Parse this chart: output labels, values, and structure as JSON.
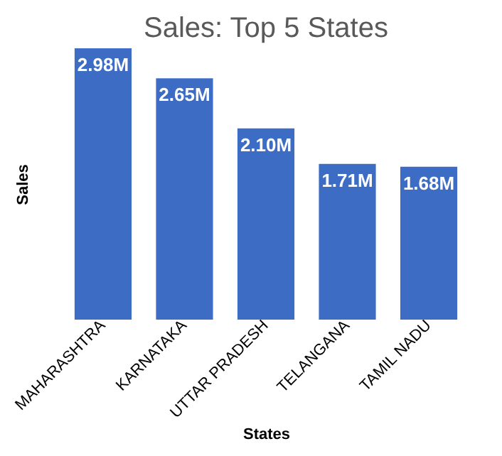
{
  "chart_data": {
    "type": "bar",
    "title": "Sales: Top 5 States",
    "xlabel": "States",
    "ylabel": "Sales",
    "categories": [
      "MAHARASHTRA",
      "KARNATAKA",
      "UTTAR PRADESH",
      "TELANGANA",
      "TAMIL NADU"
    ],
    "values": [
      2.98,
      2.65,
      2.1,
      1.71,
      1.68
    ],
    "value_labels": [
      "2.98M",
      "2.65M",
      "2.10M",
      "1.71M",
      "1.68M"
    ],
    "color": "#3d6cc4",
    "grid": false,
    "tick_labels": "x"
  }
}
